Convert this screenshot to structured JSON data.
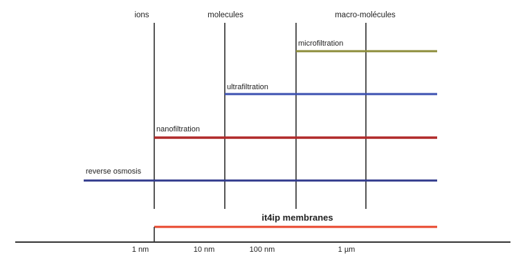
{
  "categories": [
    {
      "id": "ions",
      "label": "ions"
    },
    {
      "id": "molecules",
      "label": "molecules"
    },
    {
      "id": "macro",
      "label": "macro-molécules"
    }
  ],
  "processes": [
    {
      "id": "microfiltration",
      "label": "microfiltration",
      "color": "#8c8c3a"
    },
    {
      "id": "ultrafiltration",
      "label": "ultrafiltration",
      "color": "#3b50b0"
    },
    {
      "id": "nanofiltration",
      "label": "nanofiltration",
      "color": "#b02a2a"
    },
    {
      "id": "reverse-osmosis",
      "label": "reverse osmosis",
      "color": "#303a8c"
    }
  ],
  "membrane": {
    "label": "it4ip membranes",
    "color": "#e8452b"
  },
  "axis": {
    "ticks": [
      {
        "id": "t1",
        "label": "1 nm"
      },
      {
        "id": "t2",
        "label": "10 nm"
      },
      {
        "id": "t3",
        "label": "100 nm"
      },
      {
        "id": "t4",
        "label": "1 µm"
      }
    ]
  }
}
